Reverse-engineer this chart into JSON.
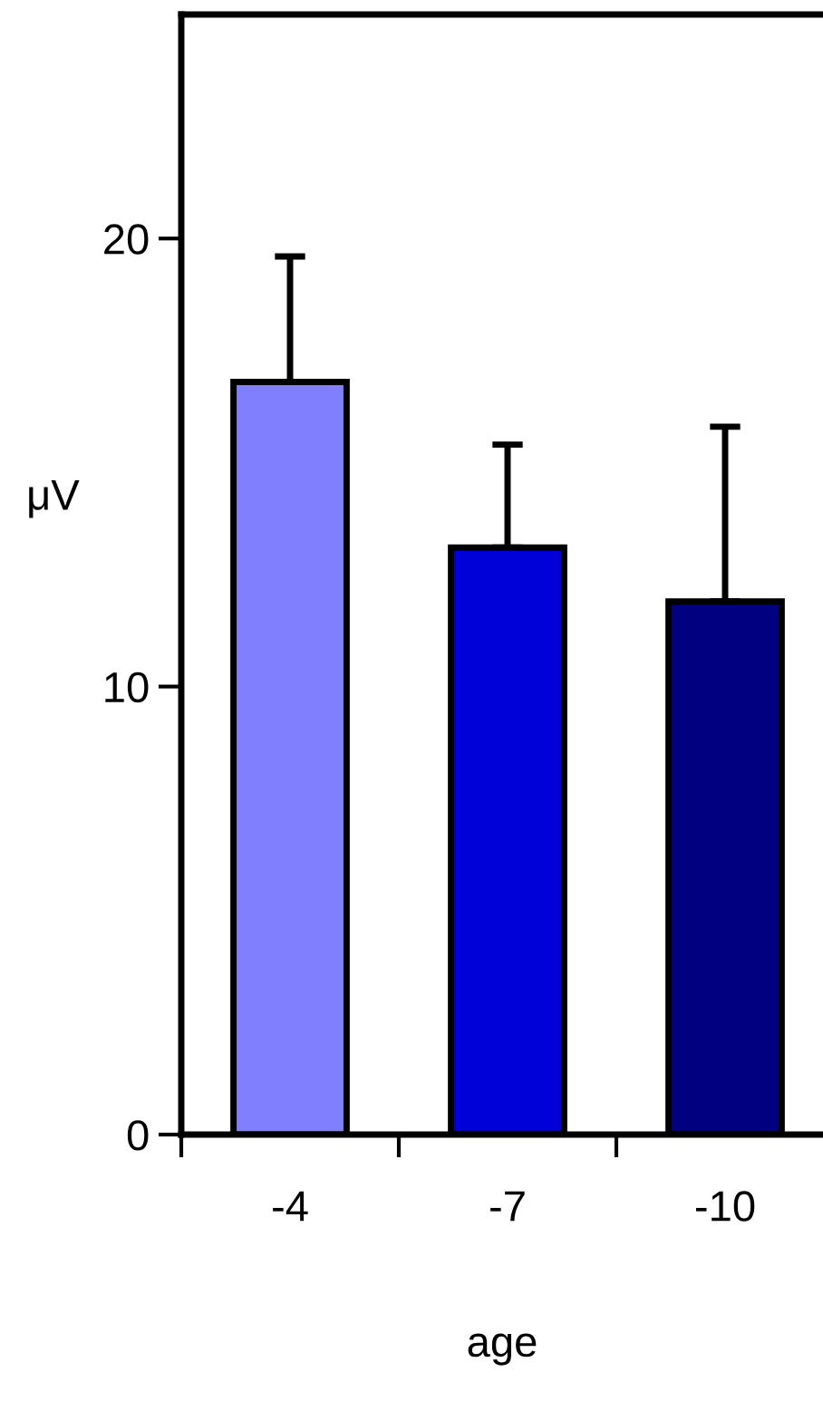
{
  "chart_data": {
    "type": "bar",
    "xlabel": "age",
    "ylabel": "μV",
    "categories": [
      "-4",
      "-7",
      "-10"
    ],
    "values": [
      16.8,
      13.1,
      11.9
    ],
    "colors": [
      "#8080ff",
      "#0000d8",
      "#000080"
    ],
    "errors": [
      [
        16.8,
        19.6
      ],
      [
        13.1,
        15.4
      ],
      [
        11.9,
        15.8
      ]
    ],
    "ylim": [
      0,
      25
    ],
    "yticks": [
      0,
      10,
      20
    ],
    "grid": false,
    "legend": false
  }
}
